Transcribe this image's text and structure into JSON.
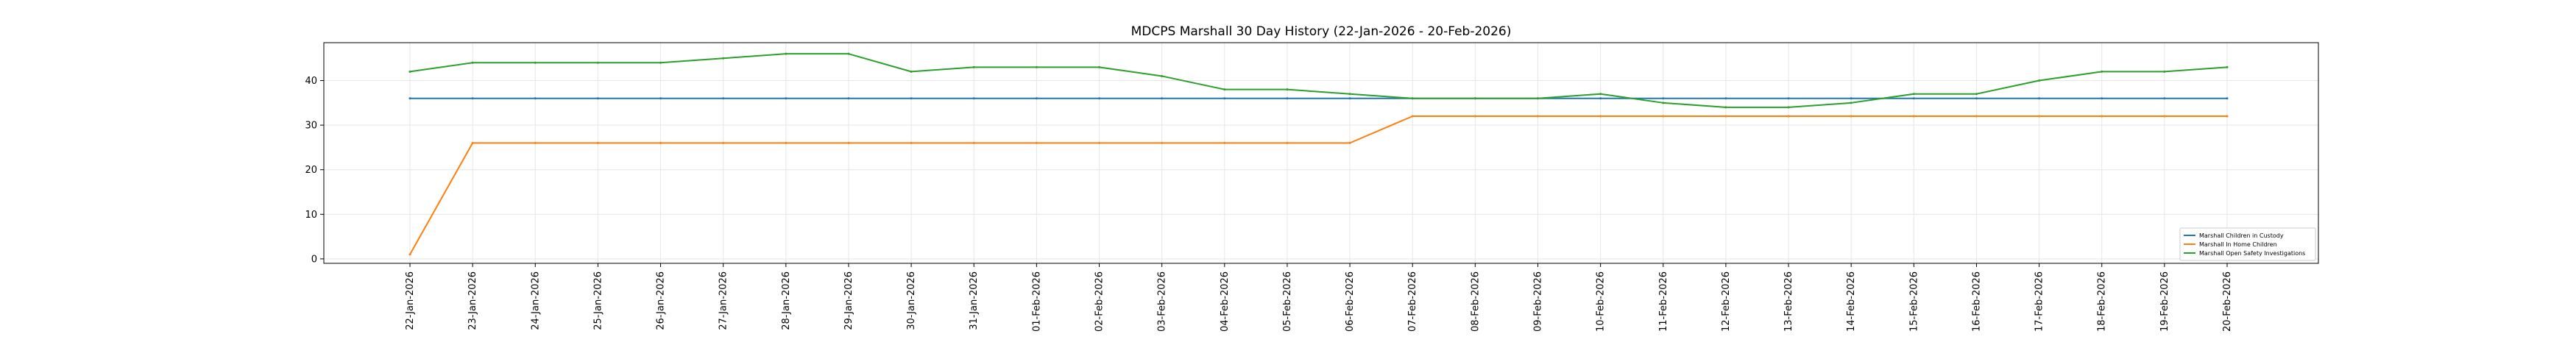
{
  "chart_data": {
    "type": "line",
    "title": "MDCPS Marshall 30 Day History (22-Jan-2026 - 20-Feb-2026)",
    "xlabel": "",
    "ylabel": "",
    "ylim": [
      -1,
      48.5
    ],
    "yticks": [
      0,
      10,
      20,
      30,
      40
    ],
    "grid": true,
    "legend_position": "lower-right",
    "categories": [
      "22-Jan-2026",
      "23-Jan-2026",
      "24-Jan-2026",
      "25-Jan-2026",
      "26-Jan-2026",
      "27-Jan-2026",
      "28-Jan-2026",
      "29-Jan-2026",
      "30-Jan-2026",
      "31-Jan-2026",
      "01-Feb-2026",
      "02-Feb-2026",
      "03-Feb-2026",
      "04-Feb-2026",
      "05-Feb-2026",
      "06-Feb-2026",
      "07-Feb-2026",
      "08-Feb-2026",
      "09-Feb-2026",
      "10-Feb-2026",
      "11-Feb-2026",
      "12-Feb-2026",
      "13-Feb-2026",
      "14-Feb-2026",
      "15-Feb-2026",
      "16-Feb-2026",
      "17-Feb-2026",
      "18-Feb-2026",
      "19-Feb-2026",
      "20-Feb-2026"
    ],
    "series": [
      {
        "name": "Marshall Children in Custody",
        "color": "#1f77b4",
        "values": [
          36,
          36,
          36,
          36,
          36,
          36,
          36,
          36,
          36,
          36,
          36,
          36,
          36,
          36,
          36,
          36,
          36,
          36,
          36,
          36,
          36,
          36,
          36,
          36,
          36,
          36,
          36,
          36,
          36,
          36
        ]
      },
      {
        "name": "Marshall In Home Children",
        "color": "#ff7f0e",
        "values": [
          1,
          26,
          26,
          26,
          26,
          26,
          26,
          26,
          26,
          26,
          26,
          26,
          26,
          26,
          26,
          26,
          32,
          32,
          32,
          32,
          32,
          32,
          32,
          32,
          32,
          32,
          32,
          32,
          32,
          32
        ]
      },
      {
        "name": "Marshall Open Safety Investigations",
        "color": "#2ca02c",
        "values": [
          42,
          44,
          44,
          44,
          44,
          45,
          46,
          46,
          42,
          43,
          43,
          43,
          41,
          38,
          38,
          37,
          36,
          36,
          36,
          37,
          35,
          34,
          34,
          35,
          37,
          37,
          40,
          42,
          42,
          43
        ]
      }
    ]
  }
}
